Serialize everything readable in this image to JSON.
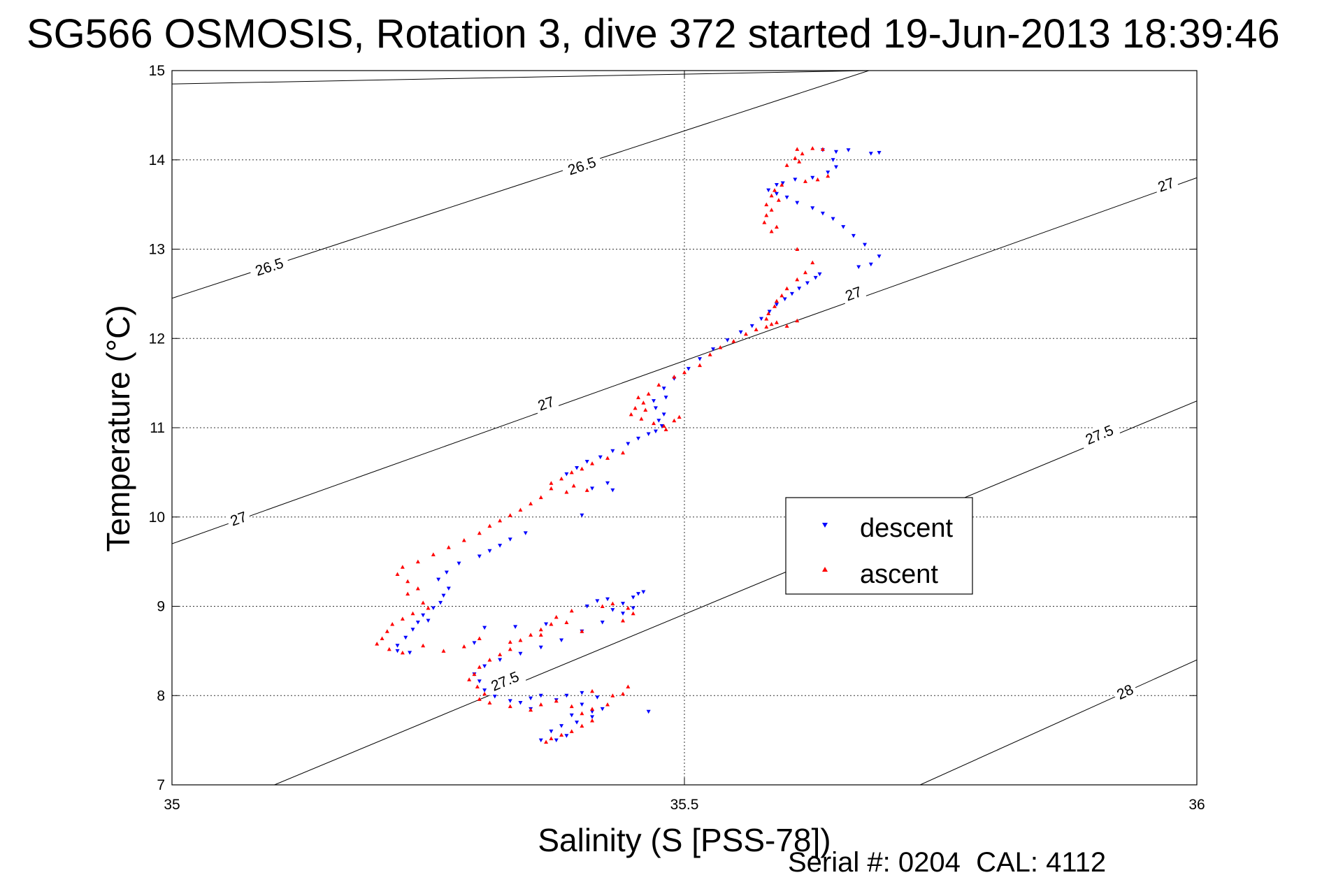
{
  "chart_data": {
    "type": "scatter",
    "title": "SG566 OSMOSIS, Rotation 3, dive 372 started 19-Jun-2013 18:39:46",
    "xlabel": "Salinity (S [PSS-78])",
    "ylabel": "Temperature (°C)",
    "xlim": [
      35,
      36
    ],
    "ylim": [
      7,
      15
    ],
    "xticks": [
      "35",
      "35.5",
      "36"
    ],
    "yticks": [
      "7",
      "8",
      "9",
      "10",
      "11",
      "12",
      "13",
      "14",
      "15"
    ],
    "grid": true,
    "legend_position": "center-right",
    "footer": "Serial #: 0204  CAL: 4112",
    "density_contours": [
      {
        "label": "26.5",
        "points": [
          [
            35.0,
            14.85
          ],
          [
            35.68,
            15.0
          ]
        ],
        "label_positions": []
      },
      {
        "label": "26.5",
        "points": [
          [
            35.0,
            12.45
          ],
          [
            35.68,
            15.0
          ]
        ],
        "label_positions": [
          [
            35.4,
            13.93
          ],
          [
            35.095,
            12.8
          ]
        ]
      },
      {
        "label": "27",
        "points": [
          [
            35.0,
            9.7
          ],
          [
            36.0,
            13.8
          ]
        ],
        "label_positions": [
          [
            35.365,
            11.27
          ],
          [
            35.665,
            12.5
          ],
          [
            35.97,
            13.72
          ],
          [
            35.065,
            9.98
          ]
        ]
      },
      {
        "label": "27.5",
        "points": [
          [
            35.1,
            7.0
          ],
          [
            36.0,
            11.3
          ]
        ],
        "label_positions": [
          [
            35.325,
            8.16
          ],
          [
            35.905,
            10.92
          ]
        ]
      },
      {
        "label": "28",
        "points": [
          [
            35.73,
            7.0
          ],
          [
            36.0,
            8.4
          ]
        ],
        "label_positions": [
          [
            35.93,
            8.04
          ]
        ]
      }
    ],
    "series": [
      {
        "name": "descent",
        "color": "#0000ff",
        "marker": "triangle-down",
        "points": [
          [
            35.635,
            14.11
          ],
          [
            35.648,
            14.09
          ],
          [
            35.66,
            14.11
          ],
          [
            35.682,
            14.07
          ],
          [
            35.69,
            14.08
          ],
          [
            35.645,
            14.0
          ],
          [
            35.648,
            13.92
          ],
          [
            35.64,
            13.86
          ],
          [
            35.625,
            13.8
          ],
          [
            35.608,
            13.78
          ],
          [
            35.596,
            13.74
          ],
          [
            35.59,
            13.72
          ],
          [
            35.582,
            13.66
          ],
          [
            35.59,
            13.62
          ],
          [
            35.6,
            13.58
          ],
          [
            35.61,
            13.52
          ],
          [
            35.625,
            13.46
          ],
          [
            35.635,
            13.4
          ],
          [
            35.645,
            13.34
          ],
          [
            35.655,
            13.25
          ],
          [
            35.665,
            13.15
          ],
          [
            35.676,
            13.05
          ],
          [
            35.69,
            12.92
          ],
          [
            35.682,
            12.83
          ],
          [
            35.67,
            12.8
          ],
          [
            35.632,
            12.72
          ],
          [
            35.628,
            12.68
          ],
          [
            35.62,
            12.62
          ],
          [
            35.612,
            12.56
          ],
          [
            35.605,
            12.5
          ],
          [
            35.598,
            12.44
          ],
          [
            35.59,
            12.38
          ],
          [
            35.583,
            12.3
          ],
          [
            35.575,
            12.22
          ],
          [
            35.566,
            12.14
          ],
          [
            35.555,
            12.07
          ],
          [
            35.542,
            11.98
          ],
          [
            35.528,
            11.88
          ],
          [
            35.515,
            11.77
          ],
          [
            35.504,
            11.66
          ],
          [
            35.49,
            11.55
          ],
          [
            35.48,
            11.44
          ],
          [
            35.482,
            11.34
          ],
          [
            35.47,
            11.3
          ],
          [
            35.472,
            11.22
          ],
          [
            35.48,
            11.15
          ],
          [
            35.475,
            11.08
          ],
          [
            35.478,
            11.02
          ],
          [
            35.472,
            10.96
          ],
          [
            35.465,
            10.93
          ],
          [
            35.455,
            10.88
          ],
          [
            35.445,
            10.82
          ],
          [
            35.43,
            10.74
          ],
          [
            35.418,
            10.67
          ],
          [
            35.405,
            10.62
          ],
          [
            35.395,
            10.55
          ],
          [
            35.385,
            10.48
          ],
          [
            35.425,
            10.38
          ],
          [
            35.43,
            10.3
          ],
          [
            35.41,
            10.32
          ],
          [
            35.4,
            10.02
          ],
          [
            35.345,
            9.82
          ],
          [
            35.33,
            9.75
          ],
          [
            35.32,
            9.68
          ],
          [
            35.31,
            9.62
          ],
          [
            35.3,
            9.56
          ],
          [
            35.28,
            9.48
          ],
          [
            35.268,
            9.38
          ],
          [
            35.26,
            9.3
          ],
          [
            35.27,
            9.2
          ],
          [
            35.265,
            9.12
          ],
          [
            35.262,
            9.04
          ],
          [
            35.255,
            8.98
          ],
          [
            35.245,
            8.9
          ],
          [
            35.24,
            8.82
          ],
          [
            35.25,
            8.84
          ],
          [
            35.305,
            8.76
          ],
          [
            35.335,
            8.77
          ],
          [
            35.365,
            8.8
          ],
          [
            35.235,
            8.74
          ],
          [
            35.228,
            8.65
          ],
          [
            35.22,
            8.56
          ],
          [
            35.295,
            8.59
          ],
          [
            35.22,
            8.5
          ],
          [
            35.232,
            8.48
          ],
          [
            35.405,
            9.0
          ],
          [
            35.415,
            9.06
          ],
          [
            35.425,
            9.08
          ],
          [
            35.44,
            9.03
          ],
          [
            35.45,
            9.1
          ],
          [
            35.455,
            9.14
          ],
          [
            35.43,
            8.96
          ],
          [
            35.44,
            8.92
          ],
          [
            35.45,
            8.98
          ],
          [
            35.46,
            9.16
          ],
          [
            35.42,
            8.82
          ],
          [
            35.4,
            8.72
          ],
          [
            35.38,
            8.62
          ],
          [
            35.36,
            8.54
          ],
          [
            35.34,
            8.47
          ],
          [
            35.32,
            8.4
          ],
          [
            35.305,
            8.33
          ],
          [
            35.295,
            8.24
          ],
          [
            35.3,
            8.16
          ],
          [
            35.305,
            8.06
          ],
          [
            35.315,
            7.99
          ],
          [
            35.33,
            7.94
          ],
          [
            35.35,
            7.97
          ],
          [
            35.36,
            8.0
          ],
          [
            35.375,
            7.95
          ],
          [
            35.385,
            8.0
          ],
          [
            35.4,
            8.03
          ],
          [
            35.415,
            7.98
          ],
          [
            35.42,
            7.85
          ],
          [
            35.41,
            7.76
          ],
          [
            35.395,
            7.7
          ],
          [
            35.38,
            7.66
          ],
          [
            35.37,
            7.6
          ],
          [
            35.385,
            7.55
          ],
          [
            35.375,
            7.5
          ],
          [
            35.36,
            7.5
          ],
          [
            35.465,
            7.82
          ],
          [
            35.4,
            7.9
          ],
          [
            35.41,
            7.82
          ],
          [
            35.39,
            7.78
          ],
          [
            35.35,
            7.85
          ],
          [
            35.34,
            7.92
          ]
        ]
      },
      {
        "name": "ascent",
        "color": "#ff0000",
        "marker": "triangle-up",
        "points": [
          [
            35.61,
            14.12
          ],
          [
            35.615,
            14.07
          ],
          [
            35.608,
            14.02
          ],
          [
            35.612,
            13.98
          ],
          [
            35.6,
            13.94
          ],
          [
            35.625,
            14.13
          ],
          [
            35.635,
            14.12
          ],
          [
            35.64,
            13.82
          ],
          [
            35.63,
            13.78
          ],
          [
            35.618,
            13.76
          ],
          [
            35.595,
            13.72
          ],
          [
            35.588,
            13.66
          ],
          [
            35.585,
            13.6
          ],
          [
            35.592,
            13.55
          ],
          [
            35.58,
            13.5
          ],
          [
            35.585,
            13.44
          ],
          [
            35.58,
            13.38
          ],
          [
            35.578,
            13.3
          ],
          [
            35.59,
            13.25
          ],
          [
            35.585,
            13.2
          ],
          [
            35.61,
            13.0
          ],
          [
            35.625,
            12.85
          ],
          [
            35.618,
            12.74
          ],
          [
            35.61,
            12.66
          ],
          [
            35.6,
            12.56
          ],
          [
            35.595,
            12.48
          ],
          [
            35.59,
            12.42
          ],
          [
            35.588,
            12.36
          ],
          [
            35.582,
            12.28
          ],
          [
            35.58,
            12.22
          ],
          [
            35.585,
            12.16
          ],
          [
            35.6,
            12.14
          ],
          [
            35.59,
            12.18
          ],
          [
            35.58,
            12.13
          ],
          [
            35.61,
            12.2
          ],
          [
            35.57,
            12.1
          ],
          [
            35.56,
            12.05
          ],
          [
            35.548,
            11.97
          ],
          [
            35.535,
            11.9
          ],
          [
            35.525,
            11.82
          ],
          [
            35.515,
            11.7
          ],
          [
            35.5,
            11.62
          ],
          [
            35.49,
            11.57
          ],
          [
            35.475,
            11.48
          ],
          [
            35.465,
            11.38
          ],
          [
            35.455,
            11.34
          ],
          [
            35.46,
            11.28
          ],
          [
            35.452,
            11.22
          ],
          [
            35.448,
            11.15
          ],
          [
            35.458,
            11.1
          ],
          [
            35.462,
            11.2
          ],
          [
            35.47,
            11.05
          ],
          [
            35.48,
            11.02
          ],
          [
            35.49,
            11.08
          ],
          [
            35.495,
            11.12
          ],
          [
            35.482,
            10.98
          ],
          [
            35.44,
            10.72
          ],
          [
            35.425,
            10.66
          ],
          [
            35.41,
            10.6
          ],
          [
            35.4,
            10.54
          ],
          [
            35.39,
            10.5
          ],
          [
            35.38,
            10.43
          ],
          [
            35.37,
            10.38
          ],
          [
            35.37,
            10.32
          ],
          [
            35.385,
            10.28
          ],
          [
            35.392,
            10.35
          ],
          [
            35.405,
            10.3
          ],
          [
            35.36,
            10.22
          ],
          [
            35.35,
            10.15
          ],
          [
            35.34,
            10.08
          ],
          [
            35.33,
            10.02
          ],
          [
            35.32,
            9.96
          ],
          [
            35.31,
            9.9
          ],
          [
            35.3,
            9.82
          ],
          [
            35.285,
            9.74
          ],
          [
            35.27,
            9.66
          ],
          [
            35.255,
            9.58
          ],
          [
            35.24,
            9.5
          ],
          [
            35.225,
            9.44
          ],
          [
            35.22,
            9.36
          ],
          [
            35.23,
            9.28
          ],
          [
            35.24,
            9.2
          ],
          [
            35.23,
            9.14
          ],
          [
            35.245,
            9.04
          ],
          [
            35.25,
            8.98
          ],
          [
            35.235,
            8.92
          ],
          [
            35.225,
            8.86
          ],
          [
            35.215,
            8.8
          ],
          [
            35.21,
            8.72
          ],
          [
            35.205,
            8.64
          ],
          [
            35.2,
            8.58
          ],
          [
            35.212,
            8.52
          ],
          [
            35.225,
            8.48
          ],
          [
            35.245,
            8.56
          ],
          [
            35.265,
            8.5
          ],
          [
            35.285,
            8.55
          ],
          [
            35.3,
            8.64
          ],
          [
            35.33,
            8.6
          ],
          [
            35.36,
            8.68
          ],
          [
            35.4,
            8.72
          ],
          [
            35.44,
            8.84
          ],
          [
            35.45,
            8.92
          ],
          [
            35.445,
            8.98
          ],
          [
            35.43,
            9.03
          ],
          [
            35.42,
            9.0
          ],
          [
            35.39,
            8.95
          ],
          [
            35.375,
            8.88
          ],
          [
            35.385,
            8.82
          ],
          [
            35.37,
            8.8
          ],
          [
            35.36,
            8.74
          ],
          [
            35.35,
            8.68
          ],
          [
            35.34,
            8.62
          ],
          [
            35.33,
            8.52
          ],
          [
            35.32,
            8.46
          ],
          [
            35.31,
            8.4
          ],
          [
            35.3,
            8.32
          ],
          [
            35.295,
            8.24
          ],
          [
            35.29,
            8.18
          ],
          [
            35.298,
            8.1
          ],
          [
            35.305,
            8.02
          ],
          [
            35.3,
            7.96
          ],
          [
            35.31,
            7.92
          ],
          [
            35.33,
            7.88
          ],
          [
            35.35,
            7.84
          ],
          [
            35.36,
            7.9
          ],
          [
            35.375,
            7.94
          ],
          [
            35.39,
            7.88
          ],
          [
            35.4,
            7.8
          ],
          [
            35.41,
            7.72
          ],
          [
            35.4,
            7.66
          ],
          [
            35.39,
            7.6
          ],
          [
            35.38,
            7.56
          ],
          [
            35.37,
            7.52
          ],
          [
            35.365,
            7.48
          ],
          [
            35.41,
            8.05
          ],
          [
            35.43,
            8.0
          ],
          [
            35.44,
            8.02
          ],
          [
            35.445,
            8.1
          ],
          [
            35.425,
            7.9
          ],
          [
            35.41,
            7.85
          ]
        ]
      }
    ]
  }
}
